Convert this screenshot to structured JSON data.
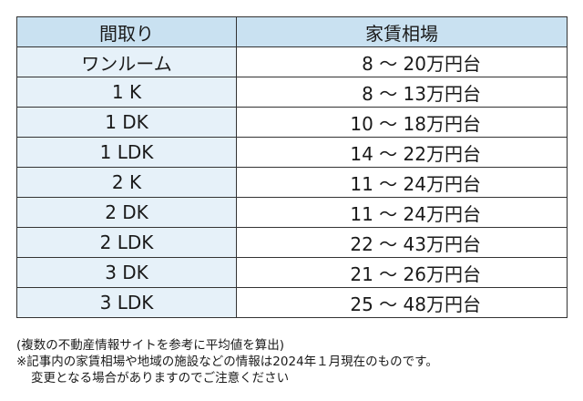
{
  "table": {
    "headers": {
      "layout": "間取り",
      "rent": "家賃相場"
    },
    "rows": [
      {
        "layout": "ワンルーム",
        "rent": "8 〜 20万円台"
      },
      {
        "layout": "1 K",
        "rent": "8 〜 13万円台"
      },
      {
        "layout": "1 DK",
        "rent": "10 〜 18万円台"
      },
      {
        "layout": "1 LDK",
        "rent": "14 〜 22万円台"
      },
      {
        "layout": "2 K",
        "rent": "11 〜 24万円台"
      },
      {
        "layout": "2 DK",
        "rent": "11 〜 24万円台"
      },
      {
        "layout": "2 LDK",
        "rent": "22 〜 43万円台"
      },
      {
        "layout": "3 DK",
        "rent": "21 〜 26万円台"
      },
      {
        "layout": "3 LDK",
        "rent": "25 〜 48万円台"
      }
    ]
  },
  "notes": {
    "source": "(複数の不動産情報サイトを参考に平均値を算出)",
    "disclaimer_line1": "※記事内の家賃相場や地域の施設などの情報は2024年１月現在のものです。",
    "disclaimer_line2": "変更となる場合がありますのでご注意ください"
  },
  "colors": {
    "header_bg": "#c9e1f1",
    "layout_cell_bg": "#e6f1f9",
    "border": "#333333"
  }
}
